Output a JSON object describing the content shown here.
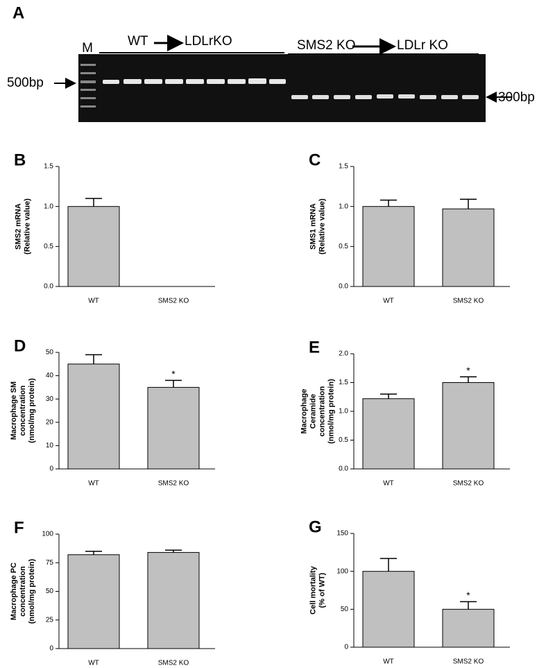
{
  "gel": {
    "panel_label": "A",
    "marker": "M",
    "group1_from": "WT",
    "group1_to": "LDLrKO",
    "group2_from": "SMS2 KO",
    "group2_to": "LDLr KO",
    "left_size": "500bp",
    "right_size": "300bp"
  },
  "chart_data": [
    {
      "type": "bar",
      "panel_label": "B",
      "y_label": [
        "SMS2 mRNA",
        "(Relative value)"
      ],
      "categories": [
        "WT",
        "SMS2 KO"
      ],
      "values": [
        1.0,
        0
      ],
      "errors": [
        0.1,
        null
      ],
      "significance": [
        null,
        null
      ],
      "color": "#c0c0c0",
      "ylim": [
        0,
        1.5
      ],
      "yticks": [
        {
          "value": 0,
          "label": "0.0"
        },
        {
          "value": 0.5,
          "label": "0.5"
        },
        {
          "value": 1,
          "label": "1.0"
        },
        {
          "value": 1.5,
          "label": "1.5"
        }
      ]
    },
    {
      "type": "bar",
      "panel_label": "C",
      "y_label": [
        "SMS1 mRNA",
        "(Relative value)"
      ],
      "categories": [
        "WT",
        "SMS2 KO"
      ],
      "values": [
        1.0,
        0.97
      ],
      "errors": [
        0.08,
        0.12
      ],
      "significance": [
        null,
        null
      ],
      "color": "#c0c0c0",
      "ylim": [
        0,
        1.5
      ],
      "yticks": [
        {
          "value": 0,
          "label": "0.0"
        },
        {
          "value": 0.5,
          "label": "0.5"
        },
        {
          "value": 1,
          "label": "1.0"
        },
        {
          "value": 1.5,
          "label": "1.5"
        }
      ]
    },
    {
      "type": "bar",
      "panel_label": "D",
      "y_label": [
        "Macrophage SM",
        "concentration",
        "(nmol/mg protein)"
      ],
      "categories": [
        "WT",
        "SMS2 KO"
      ],
      "values": [
        45,
        35
      ],
      "errors": [
        4,
        3
      ],
      "significance": [
        null,
        "*"
      ],
      "color": "#c0c0c0",
      "ylim": [
        0,
        50
      ],
      "yticks": [
        0,
        10,
        20,
        30,
        40,
        50
      ]
    },
    {
      "type": "bar",
      "panel_label": "E",
      "y_label": [
        "Macrophage",
        "Ceramide",
        "concentration",
        "(nmol/mg protein)"
      ],
      "categories": [
        "WT",
        "SMS2 KO"
      ],
      "values": [
        1.22,
        1.5
      ],
      "errors": [
        0.08,
        0.1
      ],
      "significance": [
        null,
        "*"
      ],
      "color": "#c0c0c0",
      "ylim": [
        0,
        2
      ],
      "yticks": [
        {
          "value": 0,
          "label": "0.0"
        },
        {
          "value": 0.5,
          "label": "0.5"
        },
        {
          "value": 1,
          "label": "1.0"
        },
        {
          "value": 1.5,
          "label": "1.5"
        },
        {
          "value": 2,
          "label": "2.0"
        }
      ]
    },
    {
      "type": "bar",
      "panel_label": "F",
      "y_label": [
        "Macrophage PC",
        "concentration",
        "(nmol/mg protein)"
      ],
      "categories": [
        "WT",
        "SMS2 KO"
      ],
      "values": [
        82,
        84
      ],
      "errors": [
        3,
        2
      ],
      "significance": [
        null,
        null
      ],
      "color": "#c0c0c0",
      "ylim": [
        0,
        100
      ],
      "yticks": [
        0,
        25,
        50,
        75,
        100
      ]
    },
    {
      "type": "bar",
      "panel_label": "G",
      "y_label": [
        "Cell mortality",
        "(% of WT)"
      ],
      "categories": [
        "WT",
        "SMS2 KO"
      ],
      "values": [
        100,
        50
      ],
      "errors": [
        17,
        10
      ],
      "significance": [
        null,
        "*"
      ],
      "color": "#c0c0c0",
      "ylim": [
        0,
        150
      ],
      "yticks": [
        0,
        50,
        100,
        150
      ]
    }
  ]
}
